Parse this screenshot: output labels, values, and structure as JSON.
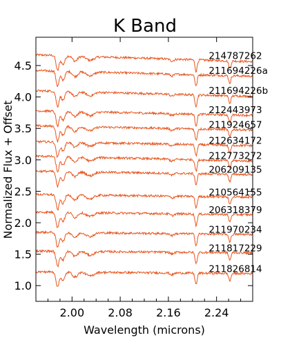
{
  "chart_data": {
    "type": "line",
    "title": "K Band",
    "xlabel": "Wavelength (microns)",
    "ylabel": "Normalized Flux + Offset",
    "xlim": [
      1.94,
      2.3
    ],
    "ylim": [
      0.75,
      4.95
    ],
    "xticks": [
      "2.00",
      "2.08",
      "2.16",
      "2.24"
    ],
    "yticks": [
      "1.0",
      "1.5",
      "2.0",
      "2.5",
      "3.0",
      "3.5",
      "4.0",
      "4.5"
    ],
    "line_color": "#e8541c",
    "series": [
      {
        "name": "214787262",
        "offset": 4.55,
        "slope": 0.3
      },
      {
        "name": "211694226a",
        "offset": 4.3,
        "slope": 0.25
      },
      {
        "name": "211694226b",
        "offset": 3.98,
        "slope": 0.25
      },
      {
        "name": "212443973",
        "offset": 3.66,
        "slope": 0.2
      },
      {
        "name": "211924657",
        "offset": 3.42,
        "slope": 0.18
      },
      {
        "name": "212634172",
        "offset": 3.17,
        "slope": 0.18
      },
      {
        "name": "212773272",
        "offset": 2.94,
        "slope": 0.22
      },
      {
        "name": "206209135",
        "offset": 2.7,
        "slope": 0.15
      },
      {
        "name": "210564155",
        "offset": 2.33,
        "slope": 0.12
      },
      {
        "name": "206318379",
        "offset": 2.05,
        "slope": 0.12
      },
      {
        "name": "211970234",
        "offset": 1.73,
        "slope": 0.1
      },
      {
        "name": "211817229",
        "offset": 1.43,
        "slope": 0.08
      },
      {
        "name": "211826814",
        "offset": 1.1,
        "slope": 0.08
      }
    ]
  }
}
